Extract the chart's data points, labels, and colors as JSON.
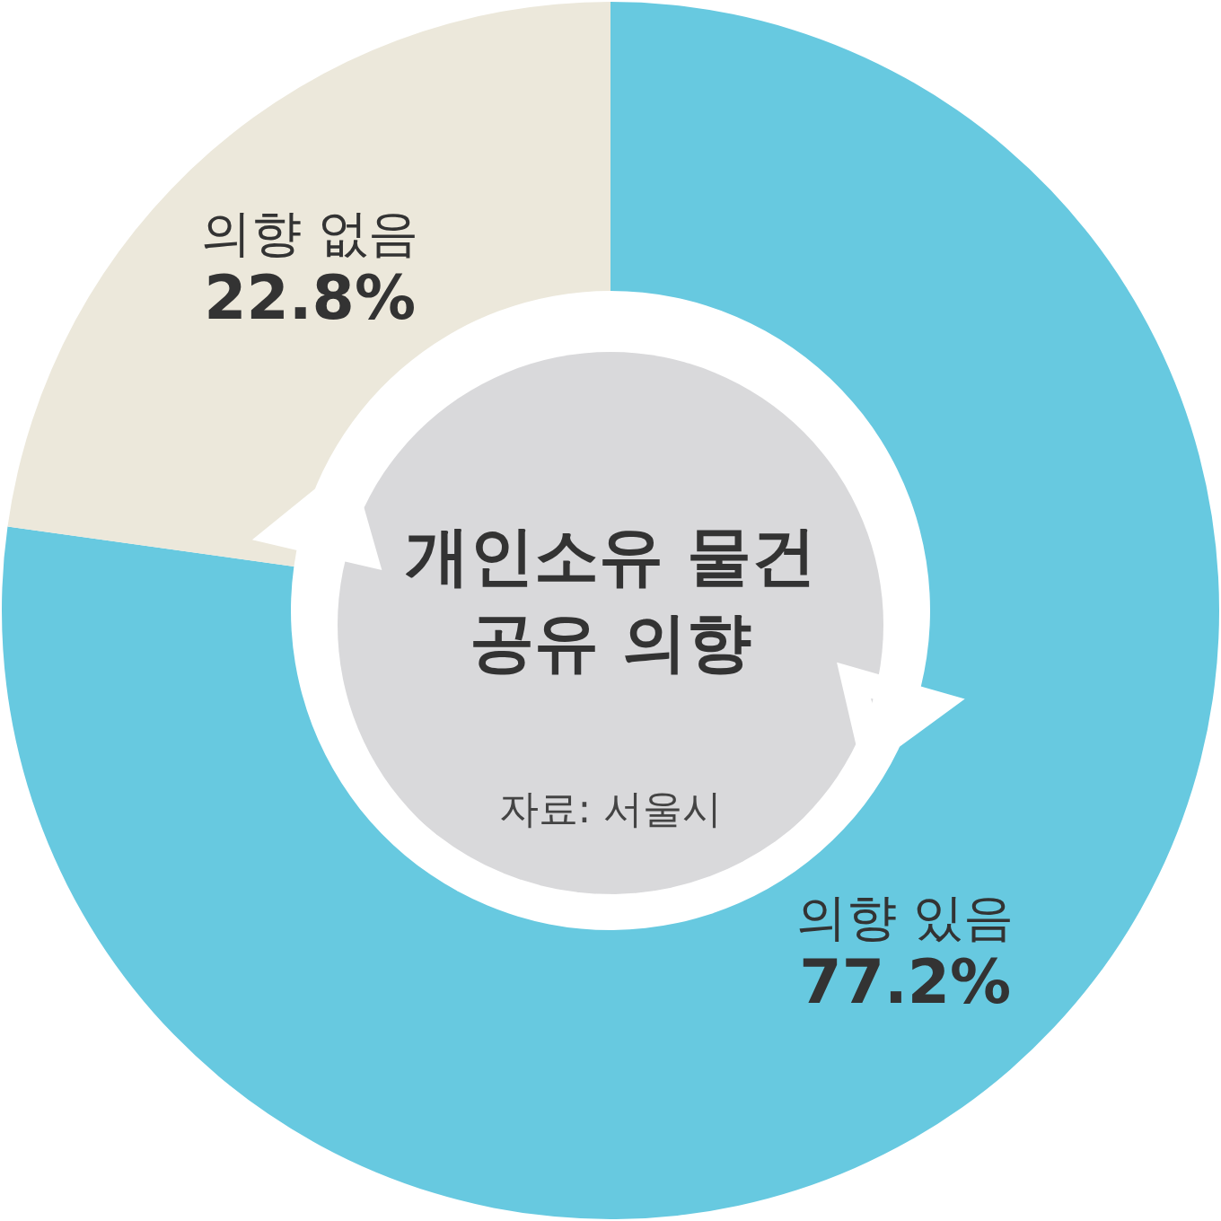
{
  "chart_data": {
    "type": "donut",
    "title": "개인소유 물건 공유 의향",
    "categories": [
      "의향 있음",
      "의향 없음"
    ],
    "values": [
      77.2,
      22.8
    ],
    "colors": [
      "#67c9e0",
      "#ece8db"
    ],
    "value_labels": [
      "77.2%",
      "22.8%"
    ],
    "annotations": [
      "자료: 서울시"
    ]
  }
}
